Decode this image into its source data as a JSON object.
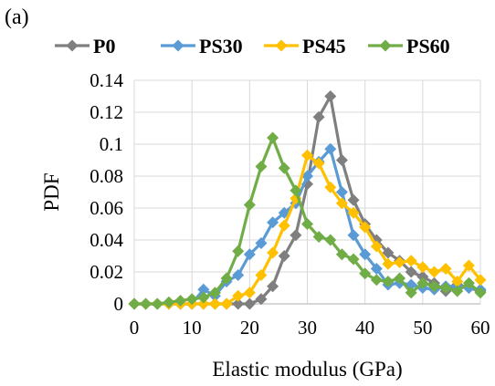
{
  "panel_label": "(a)",
  "chart_data": {
    "type": "line",
    "title": "",
    "xlabel": "Elastic modulus (GPa)",
    "ylabel": "PDF",
    "xlim": [
      0,
      60
    ],
    "ylim": [
      0,
      0.14
    ],
    "x_ticks": [
      0,
      10,
      20,
      30,
      40,
      50,
      60
    ],
    "x_tick_labels": [
      "0",
      "10",
      "20",
      "30",
      "40",
      "50",
      "60"
    ],
    "y_ticks": [
      0,
      0.02,
      0.04,
      0.06,
      0.08,
      0.1,
      0.12,
      0.14
    ],
    "y_tick_labels": [
      "0",
      "0.02",
      "0.04",
      "0.06",
      "0.08",
      "0.1",
      "0.12",
      "0.14"
    ],
    "grid": true,
    "legend_position": "top",
    "marker": "diamond",
    "series": [
      {
        "name": "P0",
        "color": "#7f7f7f",
        "x": [
          0,
          2,
          4,
          6,
          8,
          10,
          12,
          14,
          16,
          18,
          20,
          22,
          24,
          26,
          28,
          30,
          32,
          34,
          36,
          38,
          40,
          42,
          44,
          46,
          48,
          50,
          52,
          54,
          56,
          58,
          60
        ],
        "y": [
          0,
          0,
          0,
          0,
          0,
          0,
          0,
          0,
          0,
          0,
          0,
          0.003,
          0.011,
          0.03,
          0.043,
          0.075,
          0.117,
          0.13,
          0.09,
          0.065,
          0.05,
          0.04,
          0.032,
          0.027,
          0.02,
          0.017,
          0.013,
          0.008,
          0.012,
          0.01,
          0.008
        ]
      },
      {
        "name": "PS30",
        "color": "#5b9bd5",
        "x": [
          0,
          2,
          4,
          6,
          8,
          10,
          12,
          14,
          16,
          18,
          20,
          22,
          24,
          26,
          28,
          30,
          32,
          34,
          36,
          38,
          40,
          42,
          44,
          46,
          48,
          50,
          52,
          54,
          56,
          58,
          60
        ],
        "y": [
          0,
          0,
          0,
          0,
          0,
          0,
          0.009,
          0.005,
          0.014,
          0.018,
          0.031,
          0.038,
          0.051,
          0.057,
          0.063,
          0.08,
          0.089,
          0.097,
          0.07,
          0.043,
          0.031,
          0.022,
          0.012,
          0.013,
          0.012,
          0.01,
          0.009,
          0.011,
          0.011,
          0.01,
          0.009
        ]
      },
      {
        "name": "PS45",
        "color": "#ffc000",
        "x": [
          0,
          2,
          4,
          6,
          8,
          10,
          12,
          14,
          16,
          18,
          20,
          22,
          24,
          26,
          28,
          30,
          32,
          34,
          36,
          38,
          40,
          42,
          44,
          46,
          48,
          50,
          52,
          54,
          56,
          58,
          60
        ],
        "y": [
          0,
          0,
          0,
          0,
          0,
          0,
          0,
          0,
          0,
          0.005,
          0.007,
          0.018,
          0.032,
          0.049,
          0.066,
          0.093,
          0.088,
          0.073,
          0.063,
          0.057,
          0.048,
          0.036,
          0.025,
          0.026,
          0.027,
          0.023,
          0.02,
          0.022,
          0.014,
          0.024,
          0.015
        ]
      },
      {
        "name": "PS60",
        "color": "#70ad47",
        "x": [
          0,
          2,
          4,
          6,
          8,
          10,
          12,
          14,
          16,
          18,
          20,
          22,
          24,
          26,
          28,
          30,
          32,
          34,
          36,
          38,
          40,
          42,
          44,
          46,
          48,
          50,
          52,
          54,
          56,
          58,
          60
        ],
        "y": [
          0,
          0,
          0,
          0.001,
          0.002,
          0.003,
          0.004,
          0.007,
          0.016,
          0.033,
          0.062,
          0.086,
          0.104,
          0.085,
          0.071,
          0.05,
          0.042,
          0.04,
          0.031,
          0.028,
          0.019,
          0.015,
          0.014,
          0.016,
          0.007,
          0.013,
          0.011,
          0.01,
          0.008,
          0.013,
          0.007
        ]
      }
    ]
  }
}
